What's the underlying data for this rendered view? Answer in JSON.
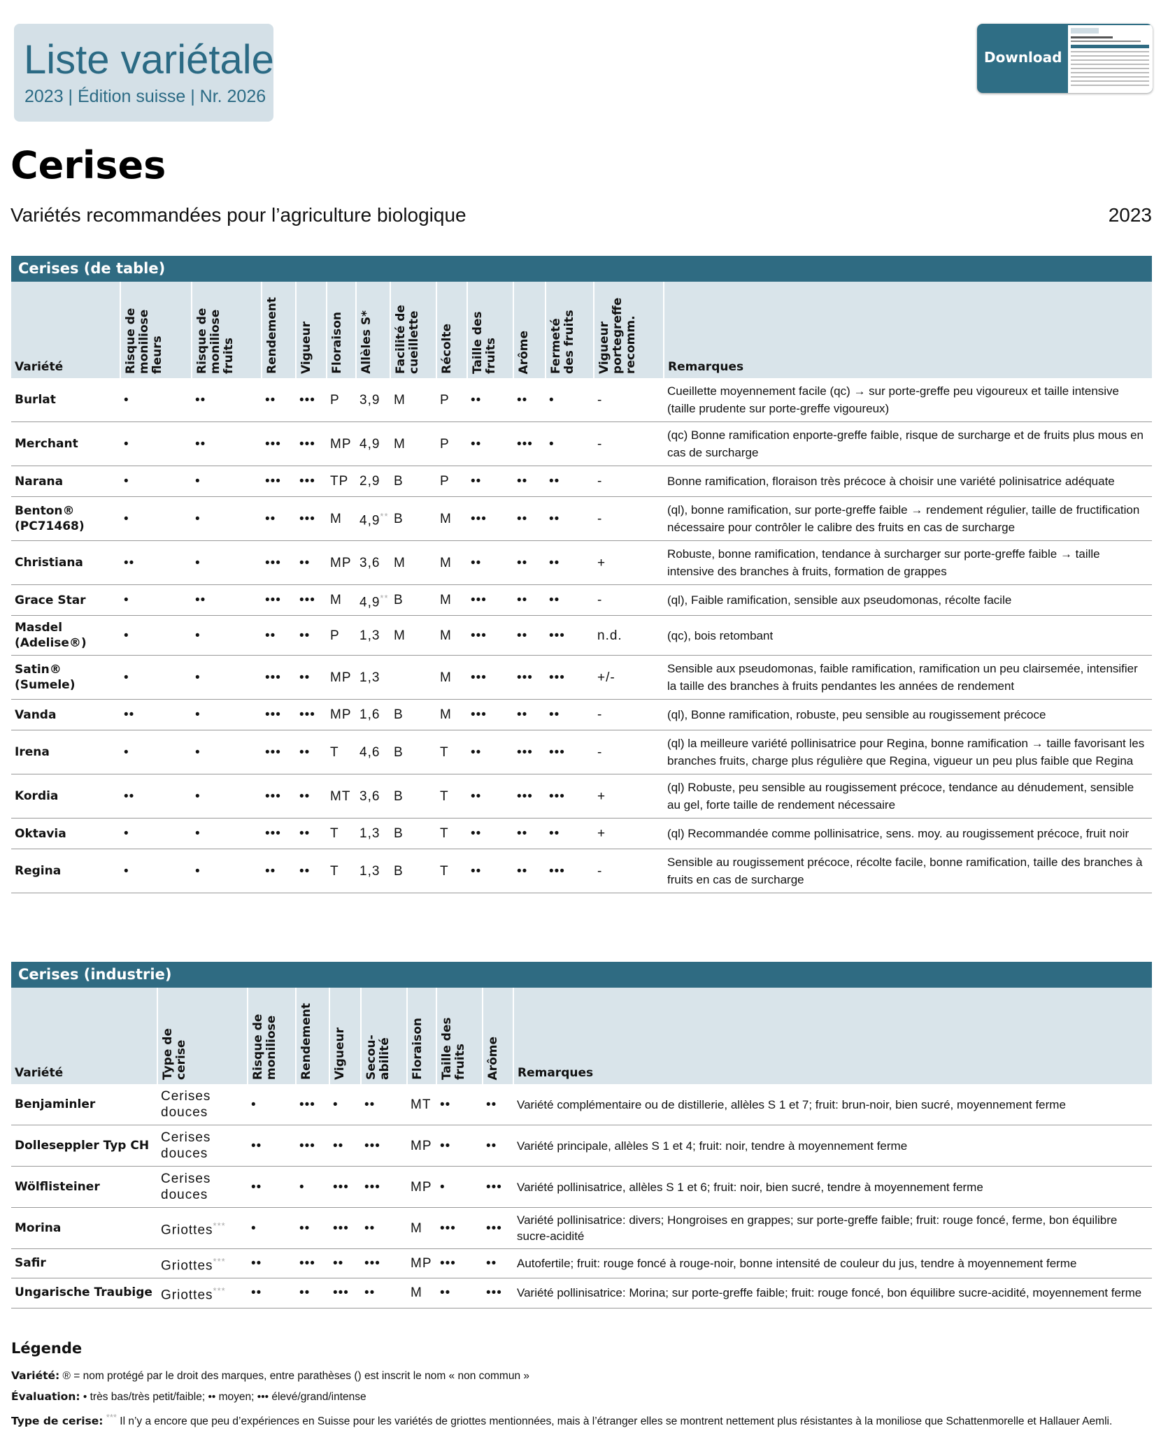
{
  "header": {
    "title": "Liste variétale",
    "subtitle": "2023 | Édition suisse | Nr. 2026",
    "download": "Download"
  },
  "page": {
    "title": "Cerises",
    "subtitle": "Variétés recommandées pour l’agriculture biologique",
    "year": "2023"
  },
  "tables": [
    {
      "title": "Cerises (de table)",
      "columns": [
        "Variété",
        "Risque de moniliose fleurs",
        "Risque de moniliose fruits",
        "Rendement",
        "Vigueur",
        "Floraison",
        "Allèles S*",
        "Facilité de cueillette",
        "Récolte",
        "Taille des fruits",
        "Arôme",
        "Fermeté des fruits",
        "Vigueur portegreffe recomm.",
        "Remarques"
      ],
      "rows": [
        [
          "Burlat",
          "•",
          "••",
          "••",
          "•••",
          "P",
          "3,9",
          "M",
          "P",
          "••",
          "••",
          "•",
          "-",
          "Cueillette moyennement facile (qc) → sur porte-greffe peu vigoureux et taille intensive (taille prudente sur porte-greffe vigoureux)"
        ],
        [
          "Merchant",
          "•",
          "••",
          "•••",
          "•••",
          "MP",
          "4,9",
          "M",
          "P",
          "••",
          "•••",
          "•",
          "-",
          "(qc) Bonne ramification enporte-greffe faible, risque de surcharge et de fruits plus mous en cas de surcharge"
        ],
        [
          "Narana",
          "•",
          "•",
          "•••",
          "•••",
          "TP",
          "2,9",
          "B",
          "P",
          "••",
          "••",
          "••",
          "-",
          "Bonne ramification, floraison très précoce à choisir une variété polinisatrice adéquate"
        ],
        [
          "Benton® (PC71468)",
          "•",
          "•",
          "••",
          "•••",
          "M",
          {
            "text": "4,9",
            "note": "**"
          },
          "B",
          "M",
          "•••",
          "••",
          "••",
          "-",
          "(ql), bonne ramification, sur porte-greffe faible → rendement régulier, taille de fructification nécessaire pour contrôler le calibre des fruits en cas de surcharge"
        ],
        [
          "Christiana",
          "••",
          "•",
          "•••",
          "••",
          "MP",
          "3,6",
          "M",
          "M",
          "••",
          "••",
          "••",
          "+",
          "Robuste, bonne ramification,  tendance à surcharger sur porte-greffe faible → taille intensive des branches à fruits, formation de grappes"
        ],
        [
          "Grace Star",
          "•",
          "••",
          "•••",
          "•••",
          "M",
          {
            "text": "4,9",
            "note": "**"
          },
          "B",
          "M",
          "•••",
          "••",
          "••",
          "-",
          "(ql), Faible ramification, sensible aux pseudomonas, récolte facile"
        ],
        [
          "Masdel (Adelise®)",
          "•",
          "•",
          "••",
          "••",
          "P",
          "1,3",
          "M",
          "M",
          "•••",
          "••",
          "•••",
          "n.d.",
          "(qc), bois retombant"
        ],
        [
          "Satin® (Sumele)",
          "•",
          "•",
          "•••",
          "••",
          "MP",
          "1,3",
          null,
          "M",
          "•••",
          "•••",
          "•••",
          "+/-",
          "Sensible aux pseudomonas, faible ramification, ramification un peu clairsemée, intensifier la taille des branches à fruits pendantes les années de rendement"
        ],
        [
          "Vanda",
          "••",
          "•",
          "•••",
          "•••",
          "MP",
          "1,6",
          "B",
          "M",
          "•••",
          "••",
          "••",
          "-",
          "(ql), Bonne ramification, robuste, peu sensible au rougissement précoce"
        ],
        [
          "Irena",
          "•",
          "•",
          "•••",
          "••",
          "T",
          "4,6",
          "B",
          "T",
          "••",
          "•••",
          "•••",
          "-",
          "(ql) la meilleure variété pollinisatrice pour Regina, bonne ramification → taille favorisant les branches fruits, charge plus régulière que Regina, vigueur un peu plus faible que Regina"
        ],
        [
          "Kordia",
          "••",
          "•",
          "•••",
          "••",
          "MT",
          "3,6",
          "B",
          "T",
          "••",
          "•••",
          "•••",
          "+",
          "(ql) Robuste, peu sensible au rougissement précoce, tendance au dénudement, sensible au gel, forte taille de rendement nécessaire"
        ],
        [
          "Oktavia",
          "•",
          "•",
          "•••",
          "••",
          "T",
          "1,3",
          "B",
          "T",
          "••",
          "••",
          "••",
          "+",
          "(ql) Recommandée comme pollinisatrice, sens. moy. au rougissement précoce, fruit noir"
        ],
        [
          "Regina",
          "•",
          "•",
          "••",
          "••",
          "T",
          "1,3",
          "B",
          "T",
          "••",
          "••",
          "•••",
          "-",
          "Sensible au rougissement précoce, récolte facile, bonne ramification, taille des branches à fruits en cas de surcharge"
        ]
      ]
    },
    {
      "title": "Cerises (industrie)",
      "columns": [
        "Variété",
        "Type de cerise",
        "Risque de moniliose",
        "Rendement",
        "Vigueur",
        "Secou-abilité",
        "Floraison",
        "Taille des fruits",
        "Arôme",
        "Remarques"
      ],
      "rows": [
        [
          "Benjaminler",
          "Cerises douces",
          "•",
          "•••",
          "•",
          "••",
          "MT",
          "••",
          "••",
          "Variété complémentaire ou de distillerie, allèles S 1 et 7; fruit: brun-noir, bien sucré, moyennement ferme"
        ],
        [
          "Dolleseppler Typ CH",
          "Cerises douces",
          "••",
          "•••",
          "••",
          "•••",
          "MP",
          "••",
          "••",
          "Variété principale, allèles S 1 et 4; fruit: noir, tendre à moyennement ferme"
        ],
        [
          "Wölflisteiner",
          "Cerises douces",
          "••",
          "•",
          "•••",
          "•••",
          "MP",
          "•",
          "•••",
          "Variété pollinisatrice, allèles S 1 et 6; fruit: noir, bien sucré, tendre à moyennement ferme"
        ],
        [
          "Morina",
          {
            "text": "Griottes",
            "note": "***"
          },
          "•",
          "••",
          "•••",
          "••",
          "M",
          "•••",
          "•••",
          "Variété pollinisatrice: divers; Hongroises en grappes; sur porte-greffe faible; fruit: rouge foncé, ferme, bon équilibre sucre-acidité"
        ],
        [
          "Safir",
          {
            "text": "Griottes",
            "note": "***"
          },
          "••",
          "•••",
          "••",
          "•••",
          "MP",
          "•••",
          "••",
          "Autofertile; fruit: rouge foncé à rouge-noir, bonne intensité de couleur du jus, tendre à moyennement ferme"
        ],
        [
          "Ungarische Traubige",
          {
            "text": "Griottes",
            "note": "***"
          },
          "••",
          "••",
          "•••",
          "••",
          "M",
          "••",
          "•••",
          "Variété pollinisatrice: Morina; sur porte-greffe faible; fruit: rouge foncé, bon équilibre sucre-acidité, moyennement ferme"
        ]
      ]
    }
  ],
  "legend": {
    "title": "Légende",
    "items": [
      {
        "label": "Variété:",
        "text": "® = nom protégé par le droit des marques, entre parathèses () est inscrit le nom « non commun »"
      },
      {
        "label": "Évaluation:",
        "text": "• très bas/très petit/faible; •• moyen; ••• élevé/grand/intense"
      },
      {
        "label": "Type de cerise:",
        "note": "***",
        "text": "Il n’y a encore que peu d’expériences en Suisse pour les variétés de griottes mentionnées, mais à l’étranger elles se montrent nettement plus résistantes à la moniliose que Schattenmorelle et Hallauer Aemli."
      }
    ]
  }
}
